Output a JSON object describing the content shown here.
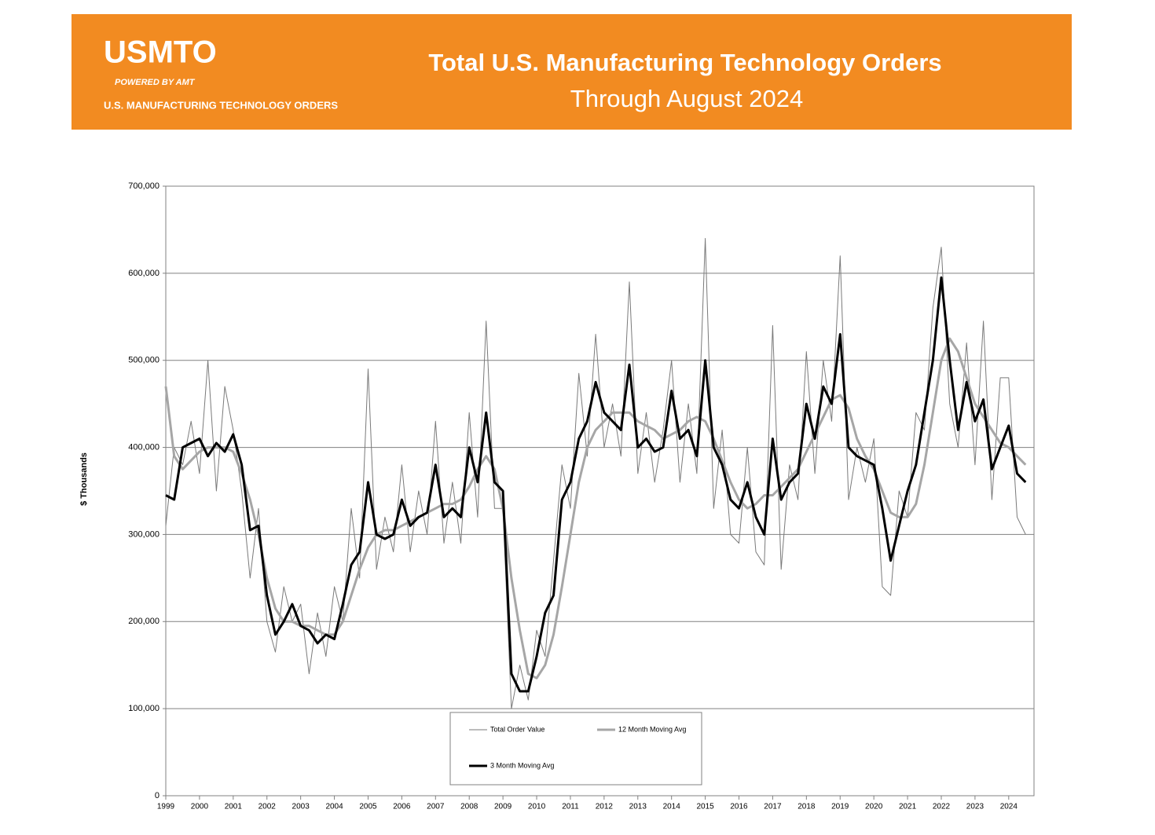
{
  "header": {
    "logo": "USMTO",
    "powered_by": "POWERED BY AMT",
    "tagline": "U.S. MANUFACTURING TECHNOLOGY ORDERS",
    "title": "Total U.S. Manufacturing Technology Orders",
    "subtitle": "Through August 2024"
  },
  "chart_data": {
    "type": "line",
    "y_label": "$ Thousands",
    "x": [
      1999,
      1999.25,
      1999.5,
      1999.75,
      2000,
      2000.25,
      2000.5,
      2000.75,
      2001,
      2001.25,
      2001.5,
      2001.75,
      2002,
      2002.25,
      2002.5,
      2002.75,
      2003,
      2003.25,
      2003.5,
      2003.75,
      2004,
      2004.25,
      2004.5,
      2004.75,
      2005,
      2005.25,
      2005.5,
      2005.75,
      2006,
      2006.25,
      2006.5,
      2006.75,
      2007,
      2007.25,
      2007.5,
      2007.75,
      2008,
      2008.25,
      2008.5,
      2008.75,
      2009,
      2009.25,
      2009.5,
      2009.75,
      2010,
      2010.25,
      2010.5,
      2010.75,
      2011,
      2011.25,
      2011.5,
      2011.75,
      2012,
      2012.25,
      2012.5,
      2012.75,
      2013,
      2013.25,
      2013.5,
      2013.75,
      2014,
      2014.25,
      2014.5,
      2014.75,
      2015,
      2015.25,
      2015.5,
      2015.75,
      2016,
      2016.25,
      2016.5,
      2016.75,
      2017,
      2017.25,
      2017.5,
      2017.75,
      2018,
      2018.25,
      2018.5,
      2018.75,
      2019,
      2019.25,
      2019.5,
      2019.75,
      2020,
      2020.25,
      2020.5,
      2020.75,
      2021,
      2021.25,
      2021.5,
      2021.75,
      2022,
      2022.25,
      2022.5,
      2022.75,
      2023,
      2023.25,
      2023.5,
      2023.75,
      2024,
      2024.25,
      2024.5
    ],
    "series": [
      {
        "name": "Total Order Value",
        "color": "#7a7a7a",
        "line_width": 1,
        "values": [
          310000,
          400000,
          380000,
          430000,
          370000,
          500000,
          350000,
          470000,
          420000,
          350000,
          250000,
          330000,
          200000,
          165000,
          240000,
          200000,
          220000,
          140000,
          210000,
          160000,
          240000,
          200000,
          330000,
          250000,
          490000,
          260000,
          320000,
          280000,
          380000,
          280000,
          350000,
          300000,
          430000,
          290000,
          360000,
          290000,
          440000,
          320000,
          545000,
          330000,
          330000,
          100000,
          150000,
          110000,
          190000,
          160000,
          270000,
          380000,
          330000,
          485000,
          390000,
          530000,
          400000,
          450000,
          390000,
          590000,
          370000,
          440000,
          360000,
          420000,
          500000,
          360000,
          450000,
          370000,
          640000,
          330000,
          420000,
          300000,
          290000,
          400000,
          280000,
          265000,
          540000,
          260000,
          380000,
          340000,
          510000,
          370000,
          500000,
          430000,
          620000,
          340000,
          400000,
          360000,
          410000,
          240000,
          230000,
          350000,
          320000,
          440000,
          420000,
          560000,
          630000,
          450000,
          400000,
          520000,
          380000,
          545000,
          340000,
          480000,
          480000,
          320000,
          300000
        ]
      },
      {
        "name": "12 Month Moving Avg",
        "color": "#a6a6a6",
        "line_width": 3,
        "values": [
          470000,
          390000,
          375000,
          385000,
          395000,
          400000,
          400000,
          400000,
          395000,
          370000,
          340000,
          300000,
          250000,
          215000,
          200000,
          200000,
          195000,
          195000,
          190000,
          185000,
          185000,
          200000,
          230000,
          260000,
          285000,
          300000,
          305000,
          305000,
          310000,
          315000,
          320000,
          325000,
          330000,
          335000,
          335000,
          340000,
          355000,
          375000,
          390000,
          375000,
          330000,
          250000,
          190000,
          140000,
          135000,
          150000,
          185000,
          240000,
          300000,
          360000,
          400000,
          420000,
          430000,
          440000,
          440000,
          440000,
          430000,
          425000,
          420000,
          410000,
          415000,
          420000,
          430000,
          435000,
          430000,
          410000,
          385000,
          360000,
          340000,
          330000,
          335000,
          345000,
          345000,
          355000,
          365000,
          375000,
          395000,
          415000,
          435000,
          455000,
          460000,
          445000,
          410000,
          390000,
          375000,
          350000,
          325000,
          320000,
          320000,
          335000,
          380000,
          440000,
          500000,
          525000,
          510000,
          480000,
          450000,
          435000,
          420000,
          405000,
          400000,
          390000,
          380000
        ]
      },
      {
        "name": "3 Month Moving Avg",
        "color": "#000000",
        "line_width": 3,
        "values": [
          345000,
          340000,
          400000,
          405000,
          410000,
          390000,
          405000,
          395000,
          415000,
          380000,
          305000,
          310000,
          230000,
          185000,
          200000,
          220000,
          195000,
          190000,
          175000,
          185000,
          180000,
          220000,
          265000,
          280000,
          360000,
          300000,
          295000,
          300000,
          340000,
          310000,
          320000,
          325000,
          380000,
          320000,
          330000,
          320000,
          400000,
          360000,
          440000,
          360000,
          350000,
          140000,
          120000,
          120000,
          160000,
          210000,
          230000,
          340000,
          360000,
          410000,
          430000,
          475000,
          440000,
          430000,
          420000,
          495000,
          400000,
          410000,
          395000,
          400000,
          465000,
          410000,
          420000,
          390000,
          500000,
          400000,
          380000,
          340000,
          330000,
          360000,
          320000,
          300000,
          410000,
          340000,
          360000,
          370000,
          450000,
          410000,
          470000,
          450000,
          530000,
          400000,
          390000,
          385000,
          380000,
          330000,
          270000,
          310000,
          350000,
          380000,
          440000,
          500000,
          595000,
          500000,
          420000,
          475000,
          430000,
          455000,
          375000,
          400000,
          425000,
          370000,
          360000
        ]
      }
    ],
    "xlim": [
      1999,
      2024.75
    ],
    "xticks": [
      1999,
      2000,
      2001,
      2002,
      2003,
      2004,
      2005,
      2006,
      2007,
      2008,
      2009,
      2010,
      2011,
      2012,
      2013,
      2014,
      2015,
      2016,
      2017,
      2018,
      2019,
      2020,
      2021,
      2022,
      2023,
      2024
    ],
    "ylim": [
      0,
      700000
    ],
    "yticks": [
      0,
      {
        "value": 100000,
        "label": "100,000"
      },
      {
        "value": 200000,
        "label": "200,000"
      },
      {
        "value": 300000,
        "label": "300,000"
      },
      {
        "value": 400000,
        "label": "400,000"
      },
      {
        "value": 500000,
        "label": "500,000"
      },
      {
        "value": 600000,
        "label": "600,000"
      },
      {
        "value": 700000,
        "label": "700,000"
      }
    ],
    "grid": true,
    "legend": "bottom"
  }
}
